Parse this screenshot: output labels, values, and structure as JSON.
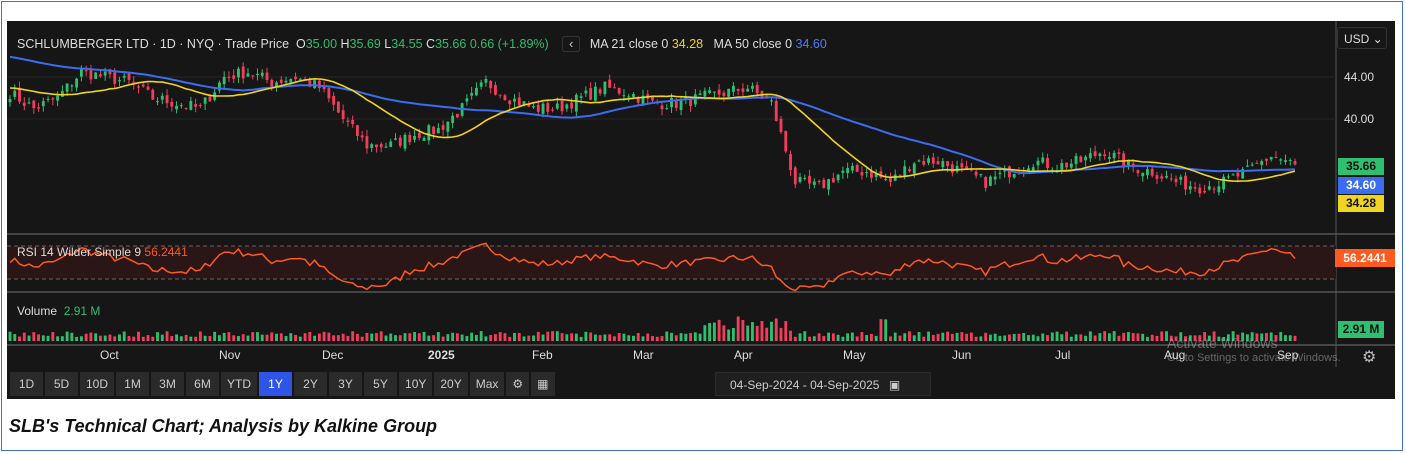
{
  "header": {
    "symbol": "SCHLUMBERGER LTD · 1D · NYQ · Trade Price",
    "o_label": "O",
    "o": "35.00",
    "h_label": "H",
    "h": "35.69",
    "l_label": "L",
    "l": "34.55",
    "c_label": "C",
    "c": "35.66",
    "change": "0.66 (+1.89%)",
    "back": "‹",
    "ma21_label": "MA 21 close 0",
    "ma21": "34.28",
    "ma50_label": "MA 50 close 0",
    "ma50": "34.60"
  },
  "currency": "USD ⌄",
  "rsi": {
    "label": "RSI 14 Wilder Simple 9",
    "value": "56.2441"
  },
  "volume": {
    "label": "Volume",
    "value": "2.91 M"
  },
  "price_tags": {
    "last": "35.66",
    "ma50": "34.60",
    "ma21": "34.28"
  },
  "colors": {
    "up": "#2fbf71",
    "down": "#f23d5c",
    "ma21": "#f0d420",
    "ma50": "#3a6df0",
    "rsi": "#ff5a1f"
  },
  "toolbar": {
    "ranges": [
      "1D",
      "5D",
      "10D",
      "1M",
      "3M",
      "6M",
      "YTD",
      "1Y",
      "2Y",
      "3Y",
      "5Y",
      "10Y",
      "20Y",
      "Max"
    ],
    "active": "1Y",
    "date_from": "04-Sep-2024",
    "date_sep": "-",
    "date_to": "04-Sep-2025"
  },
  "watermark": {
    "line1": "Activate Windows",
    "line2": "Go to Settings to activate Windows."
  },
  "caption": "SLB's Technical Chart; Analysis by Kalkine Group",
  "chart_data": {
    "type": "candlestick",
    "title": "SCHLUMBERGER LTD · 1D · NYQ",
    "x_ticks": [
      "Oct",
      "Nov",
      "Dec",
      "2025",
      "Feb",
      "Mar",
      "Apr",
      "May",
      "Jun",
      "Jul",
      "Aug",
      "Sep"
    ],
    "y_ticks": [
      "44.00",
      "40.00"
    ],
    "ylim": [
      31.5,
      47
    ],
    "weekly_close": [
      42.5,
      41,
      42,
      44.5,
      44,
      43.5,
      42,
      41.5,
      41,
      44,
      44.5,
      43.5,
      44,
      43,
      40,
      37.5,
      37.5,
      38.5,
      39,
      41,
      43.5,
      42,
      41,
      41,
      42,
      43,
      42.5,
      41.5,
      41.5,
      42,
      42.5,
      43,
      41.5,
      34,
      33.5,
      35,
      35,
      34,
      36,
      36,
      35,
      34,
      35,
      36,
      35.5,
      36,
      37,
      35.5,
      35,
      34,
      33.5,
      34,
      35,
      36.5,
      35.66
    ],
    "rsi_range": [
      30,
      70
    ],
    "volume_last_m": 2.91
  }
}
